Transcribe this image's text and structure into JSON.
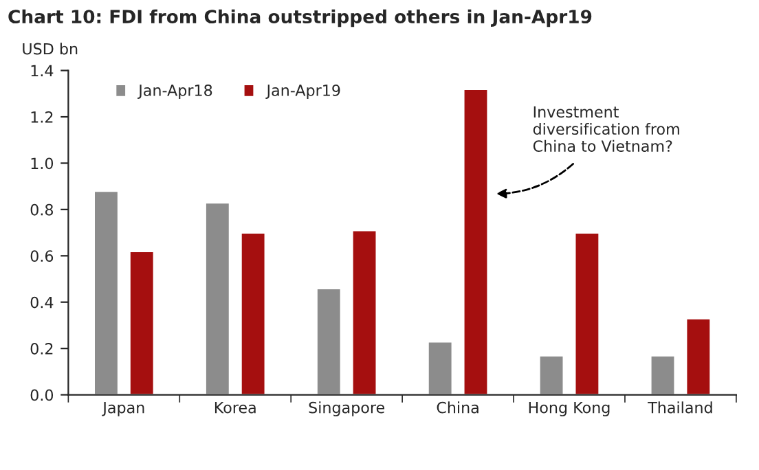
{
  "chart_data": {
    "type": "bar",
    "title": "Chart 10: FDI from China outstripped others in Jan-Apr19",
    "ylabel": "USD bn",
    "categories": [
      "Japan",
      "Korea",
      "Singapore",
      "China",
      "Hong Kong",
      "Thailand"
    ],
    "series": [
      {
        "name": "Jan-Apr18",
        "color": "#8c8c8c",
        "values": [
          0.88,
          0.83,
          0.46,
          0.23,
          0.17,
          0.17
        ]
      },
      {
        "name": "Jan-Apr19",
        "color": "#a50f0f",
        "values": [
          0.62,
          0.7,
          0.71,
          1.32,
          0.7,
          0.33
        ]
      }
    ],
    "ylim": [
      0,
      1.4
    ],
    "yticks": [
      {
        "value": 0,
        "label": "0.0"
      },
      {
        "value": 0.2,
        "label": "0.2"
      },
      {
        "value": 0.4,
        "label": "0.4"
      },
      {
        "value": 0.6,
        "label": "0.6"
      },
      {
        "value": 0.8,
        "label": "0.8"
      },
      {
        "value": 1.0,
        "label": "1.0"
      },
      {
        "value": 1.2,
        "label": "1.2"
      },
      {
        "value": 1.4,
        "label": "1.4"
      }
    ],
    "annotations": [
      "Investment\ndiversification from\nChina to Vietnam?"
    ],
    "legend": "top left",
    "grid": false
  }
}
